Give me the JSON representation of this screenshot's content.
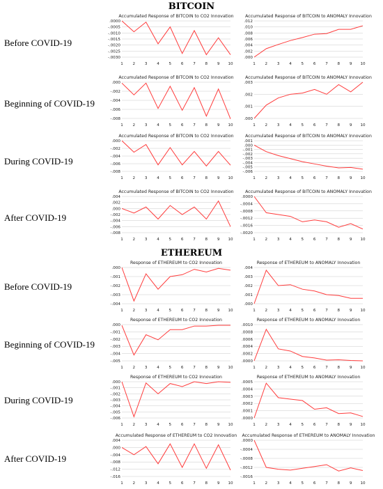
{
  "sections": [
    {
      "title": "BITCOIN"
    },
    {
      "title": "ETHEREUM"
    }
  ],
  "row_labels": [
    "Before COVID-19",
    "Beginning of COVID-19",
    "During COVID-19",
    "After COVID-19",
    "Before COVID-19",
    "Beginning of COVID-19",
    "During COVID-19",
    "After COVID-19"
  ],
  "series_color": "#ff3b3b",
  "chart_data": [
    {
      "type": "line",
      "title": "Accumulated Response of BITCOIN to CO2 Innovation",
      "x": [
        1,
        2,
        3,
        4,
        5,
        6,
        7,
        8,
        9,
        10
      ],
      "yticks": [
        ".0000",
        "-.0005",
        "-.0010",
        "-.0015",
        "-.0020",
        "-.0025",
        "-.0030"
      ],
      "ylim": [
        -0.003,
        0.0
      ],
      "series": [
        {
          "values": [
            0.0,
            -0.0009,
            -0.0001,
            -0.0019,
            -0.0005,
            -0.0027,
            -0.0008,
            -0.0028,
            -0.0014,
            -0.0028
          ]
        }
      ]
    },
    {
      "type": "line",
      "title": "Accumulated Response of BITCOIN to ANOMALY Innovation",
      "x": [
        1,
        2,
        3,
        4,
        5,
        6,
        7,
        8,
        9,
        10
      ],
      "yticks": [
        ".012",
        ".010",
        ".008",
        ".006",
        ".004",
        ".002",
        ".000"
      ],
      "ylim": [
        0.0,
        0.012
      ],
      "series": [
        {
          "values": [
            0.0,
            0.0028,
            0.0042,
            0.0055,
            0.0065,
            0.0076,
            0.0078,
            0.0092,
            0.0092,
            0.0104
          ]
        }
      ]
    },
    {
      "type": "line",
      "title": "Accumulated Response of BITCOIN to CO2 Innovation",
      "x": [
        1,
        2,
        3,
        4,
        5,
        6,
        7,
        8,
        9,
        10
      ],
      "yticks": [
        ".000",
        "-.002",
        "-.004",
        "-.006",
        "-.008"
      ],
      "ylim": [
        -0.008,
        0.0
      ],
      "series": [
        {
          "values": [
            -0.0002,
            -0.0028,
            -0.0002,
            -0.0058,
            -0.0009,
            -0.0062,
            -0.0012,
            -0.0075,
            -0.0015,
            -0.0081
          ]
        }
      ]
    },
    {
      "type": "line",
      "title": "Accumulated Response of BITCOIN to ANOMALY Innovation",
      "x": [
        1,
        2,
        3,
        4,
        5,
        6,
        7,
        8,
        9,
        10
      ],
      "yticks": [
        ".003",
        ".002",
        ".001",
        ".000"
      ],
      "ylim": [
        0.0,
        0.003
      ],
      "series": [
        {
          "values": [
            0.0,
            0.0011,
            0.0017,
            0.002,
            0.0021,
            0.0024,
            0.002,
            0.0028,
            0.0022,
            0.003
          ]
        }
      ]
    },
    {
      "type": "line",
      "title": "Accumulated Response of BITCOIN to CO2 Innovation",
      "x": [
        1,
        2,
        3,
        4,
        5,
        6,
        7,
        8,
        9,
        10
      ],
      "yticks": [
        ".000",
        "-.002",
        "-.004",
        "-.006",
        "-.008"
      ],
      "ylim": [
        -0.008,
        0.0
      ],
      "series": [
        {
          "values": [
            0.0,
            -0.003,
            -0.001,
            -0.0063,
            -0.0018,
            -0.0063,
            -0.0028,
            -0.0066,
            -0.0028,
            -0.0064
          ]
        }
      ]
    },
    {
      "type": "line",
      "title": "Accumulated Response of BITCOIN to ANOMALY Innovation",
      "x": [
        1,
        2,
        3,
        4,
        5,
        6,
        7,
        8,
        9,
        10
      ],
      "yticks": [
        ".001",
        ".000",
        "-.001",
        "-.002",
        "-.003",
        "-.004",
        "-.005",
        "-.006"
      ],
      "ylim": [
        -0.006,
        0.001
      ],
      "series": [
        {
          "values": [
            0.0,
            -0.0015,
            -0.0024,
            -0.0031,
            -0.0038,
            -0.0043,
            -0.0048,
            -0.0052,
            -0.0051,
            -0.0055
          ]
        }
      ]
    },
    {
      "type": "line",
      "title": "Accumulated Response of BITCOIN to CO2 Innovation",
      "x": [
        1,
        2,
        3,
        4,
        5,
        6,
        7,
        8,
        9,
        10
      ],
      "yticks": [
        ".004",
        ".002",
        ".000",
        "-.002",
        "-.004",
        "-.006",
        "-.008"
      ],
      "ylim": [
        -0.008,
        0.004
      ],
      "series": [
        {
          "values": [
            0.0,
            -0.0015,
            0.0005,
            -0.0035,
            0.001,
            -0.002,
            0.0005,
            -0.0035,
            0.0025,
            -0.006
          ]
        }
      ]
    },
    {
      "type": "line",
      "title": "Accumulated Response of BITCOIN to ANOMALY Innovation",
      "x": [
        1,
        2,
        3,
        4,
        5,
        6,
        7,
        8,
        9,
        10
      ],
      "yticks": [
        ".0000",
        "-.0004",
        "-.0008",
        "-.0012",
        "-.0016",
        "-.0020"
      ],
      "ylim": [
        -0.002,
        0.0
      ],
      "series": [
        {
          "values": [
            0.0,
            -0.0009,
            -0.001,
            -0.0011,
            -0.0014,
            -0.0013,
            -0.0014,
            -0.0017,
            -0.0015,
            -0.0018
          ]
        }
      ]
    },
    {
      "type": "line",
      "title": "Response of ETHEREUM to CO2 Innovation",
      "x": [
        1,
        2,
        3,
        4,
        5,
        6,
        7,
        8,
        9,
        10
      ],
      "yticks": [
        ".000",
        "-.001",
        "-.002",
        "-.003",
        "-.004"
      ],
      "ylim": [
        -0.004,
        0.0
      ],
      "series": [
        {
          "values": [
            0.0,
            -0.0037,
            -0.0007,
            -0.0024,
            -0.001,
            -0.0008,
            -0.0002,
            -0.0005,
            -0.0001,
            -0.0003
          ]
        }
      ]
    },
    {
      "type": "line",
      "title": "Response of ETHEREUM to ANOMALY Innovation",
      "x": [
        1,
        2,
        3,
        4,
        5,
        6,
        7,
        8,
        9,
        10
      ],
      "yticks": [
        ".004",
        ".003",
        ".002",
        ".001",
        ".000"
      ],
      "ylim": [
        0.0,
        0.004
      ],
      "series": [
        {
          "values": [
            0.0,
            0.0037,
            0.002,
            0.0021,
            0.0016,
            0.0014,
            0.001,
            0.0009,
            0.0006,
            0.0006
          ]
        }
      ]
    },
    {
      "type": "line",
      "title": "Response of ETHEREUM to CO2 Innovation",
      "x": [
        1,
        2,
        3,
        4,
        5,
        6,
        7,
        8,
        9,
        10
      ],
      "yticks": [
        ".000",
        "-.001",
        "-.002",
        "-.003",
        "-.004",
        "-.005"
      ],
      "ylim": [
        -0.005,
        0.0
      ],
      "series": [
        {
          "values": [
            -0.0001,
            -0.0042,
            -0.0014,
            -0.0021,
            -0.0007,
            -0.0007,
            -0.0002,
            -0.0002,
            -0.0001,
            -0.0001
          ]
        }
      ]
    },
    {
      "type": "line",
      "title": "Response of ETHEREUM to ANOMALY Innovation",
      "x": [
        1,
        2,
        3,
        4,
        5,
        6,
        7,
        8,
        9,
        10
      ],
      "yticks": [
        ".0010",
        ".0008",
        ".0006",
        ".0004",
        ".0002",
        ".0000"
      ],
      "ylim": [
        0.0,
        0.001
      ],
      "series": [
        {
          "values": [
            0.0,
            0.00087,
            0.00033,
            0.00027,
            0.00012,
            8e-05,
            2e-05,
            3e-05,
            1e-05,
            0.0
          ]
        }
      ]
    },
    {
      "type": "line",
      "title": "Response of ETHEREUM to CO2 Innovation",
      "x": [
        1,
        2,
        3,
        4,
        5,
        6,
        7,
        8,
        9,
        10
      ],
      "yticks": [
        ".000",
        "-.001",
        "-.002",
        "-.003",
        "-.004",
        "-.005",
        "-.006"
      ],
      "ylim": [
        -0.006,
        0.0
      ],
      "series": [
        {
          "values": [
            0.0,
            -0.0058,
            -0.0002,
            -0.002,
            -0.0003,
            -0.0008,
            0.0,
            -0.0003,
            0.0,
            -0.0001
          ]
        }
      ]
    },
    {
      "type": "line",
      "title": "Response of ETHEREUM to ANOMALY Innovation",
      "x": [
        1,
        2,
        3,
        4,
        5,
        6,
        7,
        8,
        9,
        10
      ],
      "yticks": [
        ".0005",
        ".0004",
        ".0003",
        ".0002",
        ".0001",
        ".0000"
      ],
      "ylim": [
        0.0,
        0.0005
      ],
      "series": [
        {
          "values": [
            0.0,
            0.00048,
            0.00028,
            0.00026,
            0.00024,
            0.00012,
            0.00014,
            6e-05,
            7e-05,
            2e-05
          ]
        }
      ]
    },
    {
      "type": "line",
      "title": "Accumulated Response of ETHEREUM to CO2 Innovation",
      "x": [
        1,
        2,
        3,
        4,
        5,
        6,
        7,
        8,
        9,
        10
      ],
      "yticks": [
        ".004",
        ".000",
        "-.004",
        "-.008",
        "-.012",
        "-.016"
      ],
      "ylim": [
        -0.016,
        0.004
      ],
      "series": [
        {
          "values": [
            0.0,
            -0.004,
            0.0005,
            -0.009,
            0.002,
            -0.011,
            0.002,
            -0.0115,
            0.0015,
            -0.0125
          ]
        }
      ]
    },
    {
      "type": "line",
      "title": "Accumulated Response of ETHEREUM to ANOMALY Innovation",
      "x": [
        1,
        2,
        3,
        4,
        5,
        6,
        7,
        8,
        9,
        10
      ],
      "yticks": [
        ".0000",
        "-.0004",
        "-.0008",
        "-.0012",
        "-.0016"
      ],
      "ylim": [
        -0.0016,
        0.0
      ],
      "series": [
        {
          "values": [
            0.0,
            -0.0012,
            -0.00128,
            -0.00132,
            -0.00124,
            -0.00116,
            -0.00108,
            -0.00136,
            -0.00122,
            -0.00134
          ]
        }
      ]
    }
  ]
}
